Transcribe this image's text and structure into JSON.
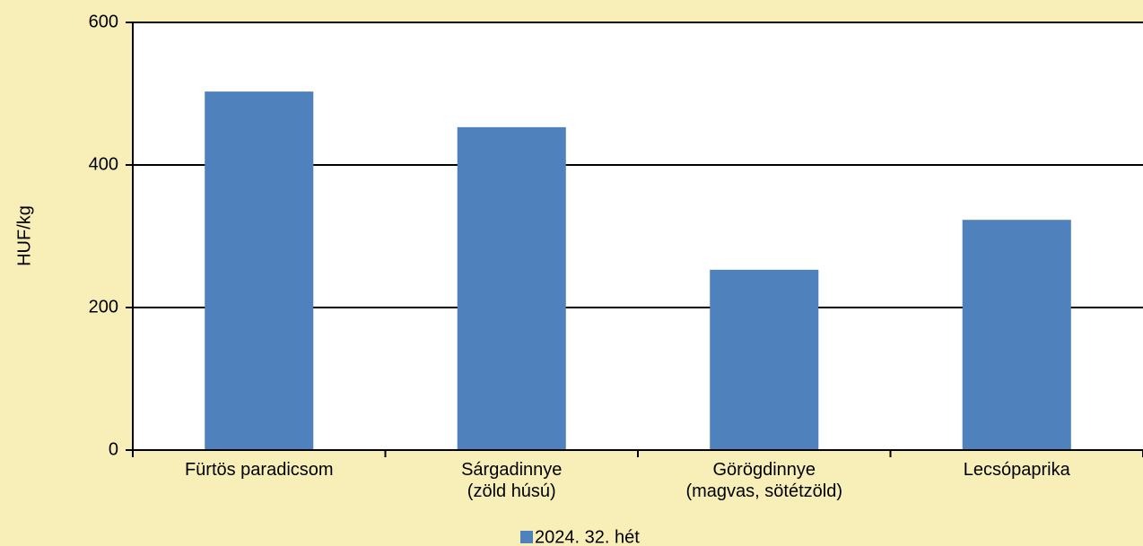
{
  "chart_data": {
    "type": "bar",
    "y_label": "HUF/kg",
    "categories": [
      "Fürtös paradicsom",
      "Sárgadinnye\n(zöld húsú)",
      "Görögdinnye\n(magvas, sötétzöld)",
      "Lecsópaprika"
    ],
    "series": [
      {
        "name": "2024. 32. hét",
        "color": "#4f81bd",
        "values": [
          503,
          453,
          253,
          323
        ]
      }
    ],
    "ylim": [
      0,
      600
    ],
    "yticks": [
      0,
      200,
      400,
      600
    ],
    "grid": true,
    "legend": "bottom"
  }
}
